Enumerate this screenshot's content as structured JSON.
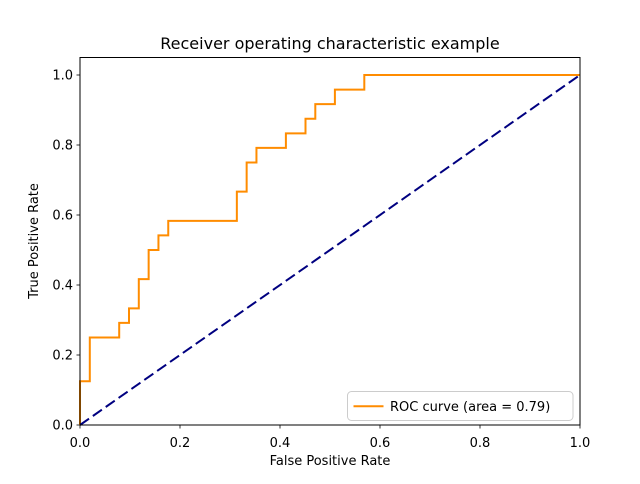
{
  "chart_data": {
    "type": "line",
    "title": "Receiver operating characteristic example",
    "xlabel": "False Positive Rate",
    "ylabel": "True Positive Rate",
    "xlim": [
      0.0,
      1.0
    ],
    "ylim": [
      0.0,
      1.05
    ],
    "x_ticks": [
      0.0,
      0.2,
      0.4,
      0.6,
      0.8,
      1.0
    ],
    "x_tick_labels": [
      "0.0",
      "0.2",
      "0.4",
      "0.6",
      "0.8",
      "1.0"
    ],
    "y_ticks": [
      0.0,
      0.2,
      0.4,
      0.6,
      0.8,
      1.0
    ],
    "y_tick_labels": [
      "0.0",
      "0.2",
      "0.4",
      "0.6",
      "0.8",
      "1.0"
    ],
    "grid": false,
    "legend_position": "lower right",
    "auc": 0.79,
    "series": [
      {
        "name": "ROC curve (area = 0.79)",
        "kind": "roc-step-curve",
        "color": "#ff8c00",
        "linewidth": 2,
        "linestyle": "solid",
        "in_legend": true,
        "points": [
          [
            0.0,
            0.0
          ],
          [
            0.0,
            0.125
          ],
          [
            0.0196,
            0.125
          ],
          [
            0.0196,
            0.25
          ],
          [
            0.0784,
            0.25
          ],
          [
            0.0784,
            0.2917
          ],
          [
            0.098,
            0.2917
          ],
          [
            0.098,
            0.3333
          ],
          [
            0.1176,
            0.3333
          ],
          [
            0.1176,
            0.4167
          ],
          [
            0.1373,
            0.4167
          ],
          [
            0.1373,
            0.5
          ],
          [
            0.1569,
            0.5
          ],
          [
            0.1569,
            0.5417
          ],
          [
            0.1765,
            0.5417
          ],
          [
            0.1765,
            0.5833
          ],
          [
            0.3137,
            0.5833
          ],
          [
            0.3137,
            0.6667
          ],
          [
            0.3333,
            0.6667
          ],
          [
            0.3333,
            0.75
          ],
          [
            0.3529,
            0.75
          ],
          [
            0.3529,
            0.7917
          ],
          [
            0.4118,
            0.7917
          ],
          [
            0.4118,
            0.8333
          ],
          [
            0.451,
            0.8333
          ],
          [
            0.451,
            0.875
          ],
          [
            0.4706,
            0.875
          ],
          [
            0.4706,
            0.9167
          ],
          [
            0.5098,
            0.9167
          ],
          [
            0.5098,
            0.9583
          ],
          [
            0.5686,
            0.9583
          ],
          [
            0.5686,
            1.0
          ],
          [
            1.0,
            1.0
          ]
        ]
      },
      {
        "name": "chance diagonal",
        "kind": "reference-diagonal",
        "color": "#000080",
        "linewidth": 2,
        "linestyle": "dashed",
        "in_legend": false,
        "points": [
          [
            0.0,
            0.0
          ],
          [
            1.0,
            1.0
          ]
        ]
      }
    ],
    "legend": {
      "label": "ROC curve (area = 0.79)",
      "border_color": "#cccccc",
      "background_color": "#ffffff"
    },
    "colors": {
      "roc_curve": "#ff8c00",
      "diagonal": "#000080",
      "spines": "#000000",
      "background": "#ffffff"
    }
  }
}
